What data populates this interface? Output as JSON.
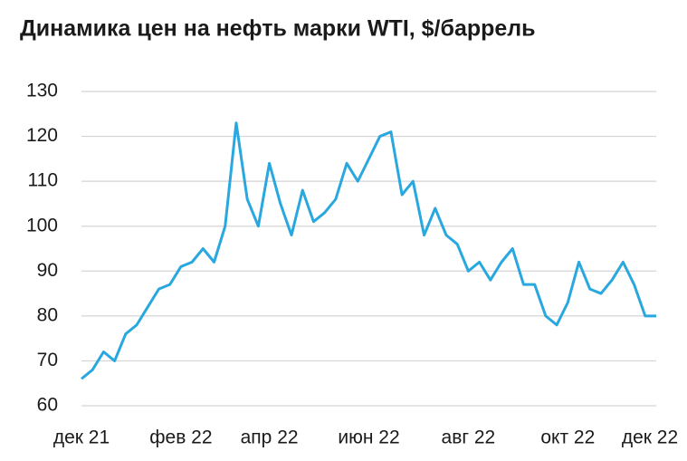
{
  "chart_data": {
    "type": "line",
    "title": "Динамика цен на нефть марки WTI, $/баррель",
    "categories": [
      "дек 21",
      null,
      null,
      null,
      null,
      null,
      null,
      null,
      null,
      "фев 22",
      null,
      null,
      null,
      null,
      null,
      null,
      null,
      "апр 22",
      null,
      null,
      null,
      null,
      null,
      null,
      null,
      null,
      "июн 22",
      null,
      null,
      null,
      null,
      null,
      null,
      null,
      null,
      "авг 22",
      null,
      null,
      null,
      null,
      null,
      null,
      null,
      null,
      "окт 22",
      null,
      null,
      null,
      null,
      null,
      null,
      null,
      "дек 22"
    ],
    "series": [
      {
        "name": "WTI",
        "color": "#29a8df",
        "values": [
          66,
          68,
          72,
          70,
          76,
          78,
          82,
          86,
          87,
          91,
          92,
          95,
          92,
          100,
          123,
          106,
          100,
          114,
          105,
          98,
          108,
          101,
          103,
          106,
          114,
          110,
          115,
          120,
          121,
          107,
          110,
          98,
          104,
          98,
          96,
          90,
          92,
          88,
          92,
          95,
          87,
          87,
          80,
          78,
          83,
          92,
          86,
          85,
          88,
          92,
          87,
          80,
          80
        ]
      }
    ],
    "ylim": [
      60,
      130
    ],
    "yticks": [
      60,
      70,
      80,
      90,
      100,
      110,
      120,
      130
    ],
    "grid": true
  }
}
